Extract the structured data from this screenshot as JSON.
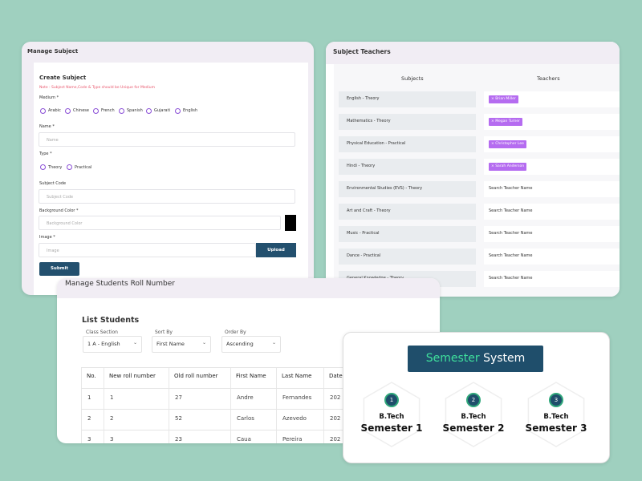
{
  "manage_subject": {
    "title": "Manage Subject",
    "form_title": "Create Subject",
    "note": "Note : Subject Name,Code & Type should be Unique for Medium",
    "medium_label": "Medium *",
    "mediums": [
      "Arabic",
      "Chinese",
      "French",
      "Spanish",
      "Gujarati",
      "English"
    ],
    "name_label": "Name *",
    "name_placeholder": "Name",
    "type_label": "Type *",
    "types": [
      "Theory",
      "Practical"
    ],
    "code_label": "Subject Code",
    "code_placeholder": "Subject Code",
    "color_label": "Background Color *",
    "color_placeholder": "Background Color",
    "image_label": "Image *",
    "image_placeholder": "Image",
    "upload": "Upload",
    "submit": "Submit"
  },
  "subject_teachers": {
    "title": "Subject Teachers",
    "columns": [
      "Subjects",
      "Teachers"
    ],
    "rows": [
      {
        "subject": "English - Theory",
        "teacher": "Brian Miller"
      },
      {
        "subject": "Mathematics - Theory",
        "teacher": "Megan Turner"
      },
      {
        "subject": "Physical Education - Practical",
        "teacher": "Christopher Lee"
      },
      {
        "subject": "Hindi - Theory",
        "teacher": "Sarah Anderson"
      },
      {
        "subject": "Environmental Studies (EVS) - Theory",
        "placeholder": "Search Teacher Name"
      },
      {
        "subject": "Art and Craft - Theory",
        "placeholder": "Search Teacher Name"
      },
      {
        "subject": "Music - Practical",
        "placeholder": "Search Teacher Name"
      },
      {
        "subject": "Dance - Practical",
        "placeholder": "Search Teacher Name"
      },
      {
        "subject": "General Knowledge - Theory",
        "placeholder": "Search Teacher Name"
      }
    ]
  },
  "roll_numbers": {
    "title": "Manage Students Roll Number",
    "list_title": "List Students",
    "filters": [
      {
        "label": "Class Section",
        "value": "1 A - English"
      },
      {
        "label": "Sort By",
        "value": "First Name"
      },
      {
        "label": "Order By",
        "value": "Ascending"
      }
    ],
    "columns": [
      "No.",
      "New roll number",
      "Old roll number",
      "First Name",
      "Last Name",
      "Date"
    ],
    "rows": [
      [
        1,
        1,
        27,
        "Andre",
        "Fernandes",
        "202"
      ],
      [
        2,
        2,
        52,
        "Carlos",
        "Azevedo",
        "202"
      ],
      [
        3,
        3,
        23,
        "Caua",
        "Pereira",
        "202"
      ]
    ]
  },
  "semester": {
    "title_accent": "Semester",
    "title_rest": "System",
    "cards": [
      {
        "number": 1,
        "degree": "B.Tech",
        "name": "Semester 1"
      },
      {
        "number": 2,
        "degree": "B.Tech",
        "name": "Semester 2"
      },
      {
        "number": 3,
        "degree": "B.Tech",
        "name": "Semester 3"
      }
    ]
  }
}
